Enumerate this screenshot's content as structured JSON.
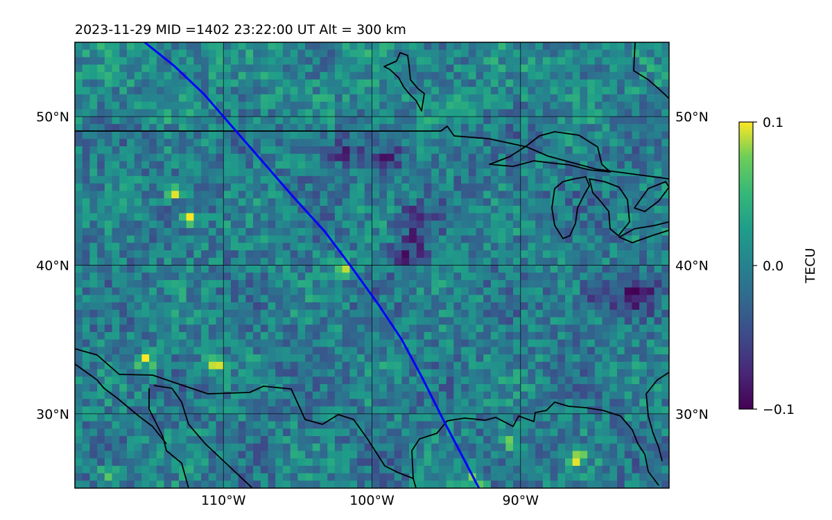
{
  "map": {
    "title": "2023-11-29  MID =1402    23:22:00  UT  Alt = 300 km",
    "lon_range": [
      -120,
      -80
    ],
    "lat_range": [
      25,
      55
    ],
    "lon_ticks": [
      {
        "value": -110,
        "label": "110°W"
      },
      {
        "value": -100,
        "label": "100°W"
      },
      {
        "value": -90,
        "label": "90°W"
      }
    ],
    "lat_ticks": [
      {
        "value": 50,
        "label": "50°N"
      },
      {
        "value": 40,
        "label": "40°N"
      },
      {
        "value": 30,
        "label": "30°N"
      }
    ],
    "gridlines": true,
    "track_color": "#0000ff",
    "track": [
      [
        -115.3,
        55
      ],
      [
        -113.3,
        53.4
      ],
      [
        -111.3,
        51.5
      ],
      [
        -109.3,
        49.2
      ],
      [
        -107.3,
        46.9
      ],
      [
        -105.3,
        44.6
      ],
      [
        -103.2,
        42.3
      ],
      [
        -101.4,
        39.9
      ],
      [
        -99.6,
        37.4
      ],
      [
        -98.0,
        35.0
      ],
      [
        -96.6,
        32.4
      ],
      [
        -95.2,
        29.6
      ],
      [
        -94.0,
        27.3
      ],
      [
        -92.8,
        25
      ]
    ],
    "colormap": "viridis",
    "highlights": [
      {
        "lon": -110.6,
        "lat": 33.5,
        "value": 0.1
      },
      {
        "lon": -113.3,
        "lat": 45.0,
        "value": 0.09
      },
      {
        "lon": -112.2,
        "lat": 43.1,
        "value": 0.1
      },
      {
        "lon": -102.0,
        "lat": 39.7,
        "value": 0.1
      },
      {
        "lon": -90.7,
        "lat": 28.2,
        "value": 0.1
      },
      {
        "lon": -86.2,
        "lat": 27.0,
        "value": 0.1
      },
      {
        "lon": -115.2,
        "lat": 33.6,
        "value": 0.08
      },
      {
        "lon": -117.8,
        "lat": 26.0,
        "value": 0.06
      },
      {
        "lon": -93.0,
        "lat": 25.5,
        "value": 0.07
      }
    ],
    "lows": [
      {
        "lon": -84.5,
        "lat": 38.2,
        "value": -0.1
      },
      {
        "lon": -82.0,
        "lat": 38.0,
        "value": -0.09
      },
      {
        "lon": -97.0,
        "lat": 43.0,
        "value": -0.08
      },
      {
        "lon": -97.5,
        "lat": 40.8,
        "value": -0.08
      },
      {
        "lon": -102.0,
        "lat": 47.8,
        "value": -0.07
      },
      {
        "lon": -99.0,
        "lat": 47.0,
        "value": -0.06
      }
    ]
  },
  "colorbar": {
    "label": "TECU",
    "min": -0.1,
    "max": 0.1,
    "ticks": [
      {
        "value": 0.1,
        "label": "0.1"
      },
      {
        "value": 0.0,
        "label": "0.0"
      },
      {
        "value": -0.1,
        "label": "−0.1"
      }
    ]
  }
}
